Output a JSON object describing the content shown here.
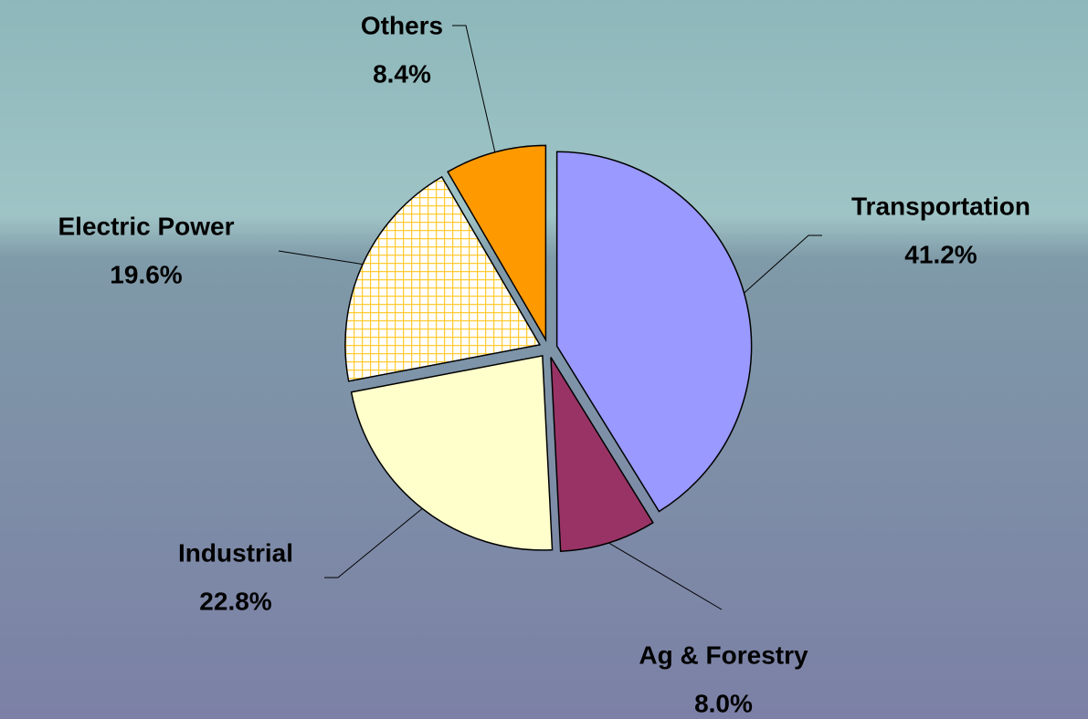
{
  "chart_data": {
    "type": "pie",
    "categories": [
      "Transportation",
      "Ag & Forestry",
      "Industrial",
      "Electric Power",
      "Others"
    ],
    "values": [
      41.2,
      8.0,
      22.8,
      19.6,
      8.4
    ],
    "value_labels": [
      "41.2%",
      "8.0%",
      "22.8%",
      "19.6%",
      "8.4%"
    ],
    "colors": [
      "#9999ff",
      "#993366",
      "#ffffcc",
      "#ffcc33",
      "#ff9900"
    ]
  }
}
